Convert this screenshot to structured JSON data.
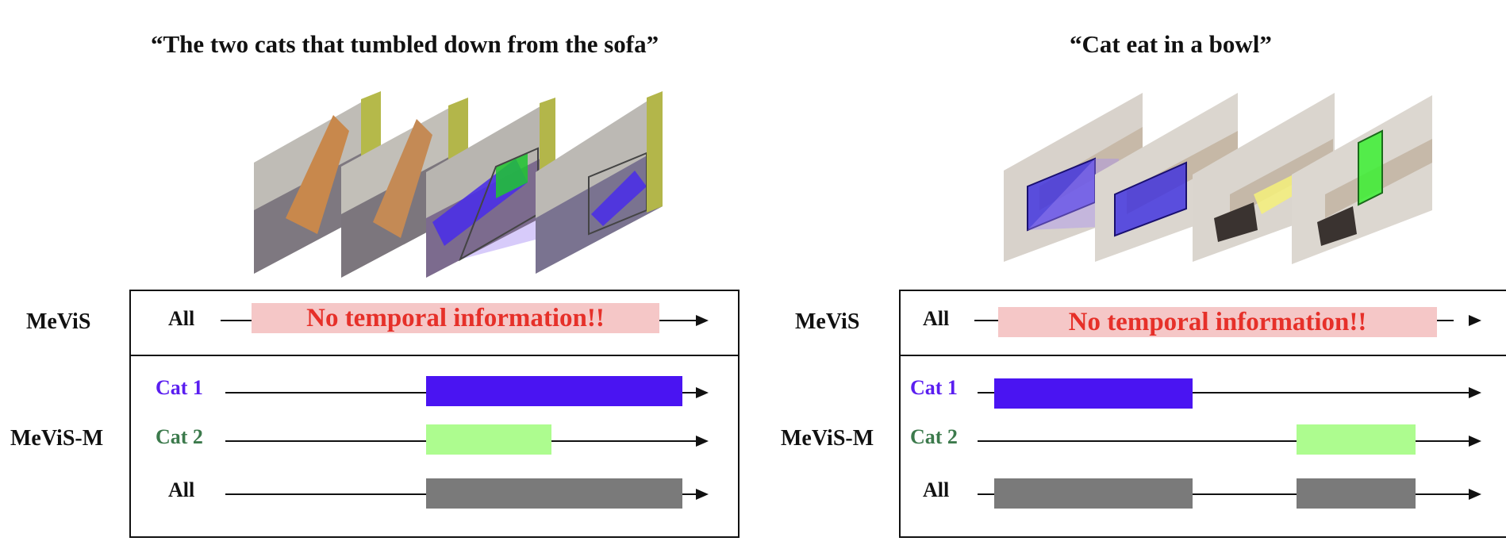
{
  "colors": {
    "cat1": "#4a14f2",
    "cat2": "#adfc8f",
    "all": "#7a7a7a",
    "no_temporal_bg": "#f5c7c7",
    "no_temporal_text": "#e63029",
    "label_cat1": "#5a1ef0",
    "label_cat2": "#3c7a4c",
    "label_default": "#111111"
  },
  "panels": [
    {
      "caption": "“The two cats that tumbled down from the sofa”",
      "mevis": {
        "label": "MeViS",
        "row": {
          "label": "All",
          "message": "No temporal information!!"
        }
      },
      "mevis_m": {
        "label": "MeViS-M",
        "rows": [
          {
            "label": "Cat 1",
            "color_key": "cat1",
            "segments": [
              [
                0.44,
                0.99
              ]
            ]
          },
          {
            "label": "Cat 2",
            "color_key": "cat2",
            "segments": [
              [
                0.44,
                0.71
              ]
            ]
          },
          {
            "label": "All",
            "color_key": "all",
            "segments": [
              [
                0.44,
                0.99
              ]
            ]
          }
        ]
      }
    },
    {
      "caption": "“Cat eat in a bowl”",
      "mevis": {
        "label": "MeViS",
        "row": {
          "label": "All",
          "message": "No temporal information!!"
        }
      },
      "mevis_m": {
        "label": "MeViS-M",
        "rows": [
          {
            "label": "Cat 1",
            "color_key": "cat1",
            "segments": [
              [
                0.04,
                0.44
              ]
            ]
          },
          {
            "label": "Cat 2",
            "color_key": "cat2",
            "segments": [
              [
                0.65,
                0.89
              ]
            ]
          },
          {
            "label": "All",
            "color_key": "all",
            "segments": [
              [
                0.04,
                0.44
              ],
              [
                0.65,
                0.89
              ]
            ]
          }
        ]
      }
    }
  ]
}
